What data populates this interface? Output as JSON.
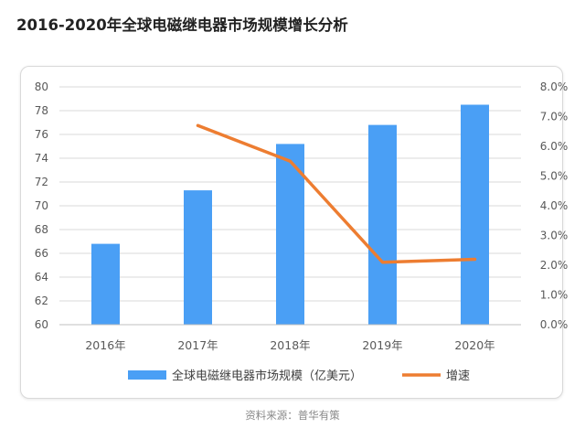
{
  "page": {
    "title": "2016-2020年全球电磁继电器市场规模增长分析",
    "source": "资料来源：普华有策"
  },
  "colors": {
    "bar": "#4a9ff5",
    "line": "#ed7d31",
    "grid": "#d9d9d9",
    "axis_text": "#595959"
  },
  "chart_data": {
    "type": "bar",
    "title": "2016-2020年全球电磁继电器市场规模增长分析",
    "categories": [
      "2016年",
      "2017年",
      "2018年",
      "2019年",
      "2020年"
    ],
    "series": [
      {
        "name": "全球电磁继电器市场规模（亿美元）",
        "type": "bar",
        "axis": "left",
        "values": [
          66.8,
          71.3,
          75.2,
          76.8,
          78.5
        ]
      },
      {
        "name": "增速",
        "type": "line",
        "axis": "right",
        "values": [
          null,
          6.7,
          5.5,
          2.1,
          2.2
        ]
      }
    ],
    "ylim": [
      60,
      80
    ],
    "y_ticks": [
      "60",
      "62",
      "64",
      "66",
      "68",
      "70",
      "72",
      "74",
      "76",
      "78",
      "80"
    ],
    "y2lim": [
      0,
      8
    ],
    "y2_ticks": [
      "0.0%",
      "1.0%",
      "2.0%",
      "3.0%",
      "4.0%",
      "5.0%",
      "6.0%",
      "7.0%",
      "8.0%"
    ],
    "grid": true,
    "legend": "bottom"
  }
}
